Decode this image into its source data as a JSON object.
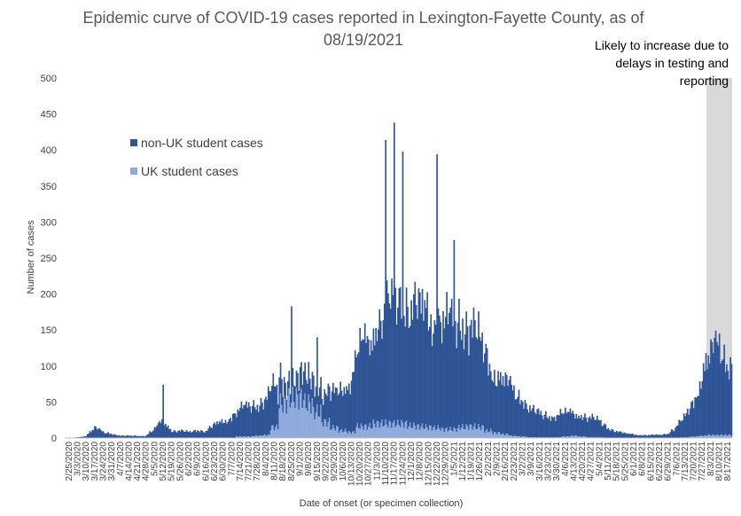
{
  "chart_data": {
    "type": "bar",
    "stacked": true,
    "title_line1": "Epidemic curve of COVID-19 cases reported in Lexington-Fayette County, as of",
    "title_line2": "08/19/2021",
    "xlabel": "Date of onset (or specimen collection)",
    "ylabel": "Number of cases",
    "ylim": [
      0,
      500
    ],
    "yticks": [
      0,
      50,
      100,
      150,
      200,
      250,
      300,
      350,
      400,
      450,
      500
    ],
    "grid": false,
    "legend_placement": "upper-left",
    "x_ticks": [
      "2/25/2020",
      "3/3/2020",
      "3/10/2020",
      "3/17/2020",
      "3/24/2020",
      "3/31/2020",
      "4/7/2020",
      "4/14/2020",
      "4/21/2020",
      "4/28/2020",
      "5/5/2020",
      "5/12/2020",
      "5/19/2020",
      "5/26/2020",
      "6/2/2020",
      "6/9/2020",
      "6/16/2020",
      "6/23/2020",
      "6/30/2020",
      "7/7/2020",
      "7/14/2020",
      "7/21/2020",
      "7/28/2020",
      "8/4/2020",
      "8/11/2020",
      "8/18/2020",
      "8/25/2020",
      "9/1/2020",
      "9/8/2020",
      "9/15/2020",
      "9/22/2020",
      "9/29/2020",
      "10/6/2020",
      "10/13/2020",
      "10/20/2020",
      "10/27/2020",
      "11/3/2020",
      "11/10/2020",
      "11/17/2020",
      "11/24/2020",
      "12/1/2020",
      "12/8/2020",
      "12/15/2020",
      "12/22/2020",
      "12/29/2020",
      "1/5/2021",
      "1/12/2021",
      "1/19/2021",
      "1/26/2021",
      "2/2/2021",
      "2/9/2021",
      "2/16/2021",
      "2/23/2021",
      "3/2/2021",
      "3/9/2021",
      "3/16/2021",
      "3/23/2021",
      "3/30/2021",
      "4/6/2021",
      "4/13/2021",
      "4/20/2021",
      "4/27/2021",
      "5/4/2021",
      "5/11/2021",
      "5/18/2021",
      "5/25/2021",
      "6/1/2021",
      "6/8/2021",
      "6/15/2021",
      "6/22/2021",
      "6/29/2021",
      "7/6/2021",
      "7/13/2021",
      "7/20/2021",
      "7/27/2021",
      "8/3/2021",
      "8/10/2021",
      "8/17/2021"
    ],
    "weekly_series": [
      {
        "name": "non-UK student cases",
        "color": "#2f5597",
        "values": [
          0,
          1,
          3,
          14,
          8,
          6,
          3,
          3,
          3,
          3,
          12,
          25,
          10,
          10,
          8,
          11,
          9,
          18,
          23,
          31,
          38,
          41,
          43,
          51,
          58,
          28,
          22,
          30,
          38,
          38,
          38,
          50,
          60,
          73,
          110,
          115,
          142,
          162,
          165,
          178,
          160,
          160,
          158,
          156,
          148,
          148,
          146,
          138,
          120,
          100,
          78,
          72,
          60,
          53,
          38,
          32,
          30,
          30,
          32,
          30,
          30,
          27,
          22,
          14,
          9,
          6,
          5,
          4,
          4,
          4,
          6,
          16,
          28,
          50,
          88,
          110,
          122,
          100
        ]
      },
      {
        "name": "UK student cases",
        "color": "#8faadc",
        "values": [
          0,
          0,
          0,
          0,
          0,
          0,
          0,
          0,
          0,
          0,
          0,
          0,
          0,
          0,
          0,
          0,
          0,
          0,
          0,
          0,
          2,
          2,
          3,
          4,
          15,
          48,
          55,
          56,
          48,
          36,
          22,
          14,
          10,
          8,
          16,
          16,
          20,
          20,
          20,
          20,
          17,
          16,
          15,
          14,
          12,
          12,
          15,
          16,
          15,
          10,
          7,
          5,
          3,
          2,
          1,
          1,
          1,
          1,
          2,
          3,
          2,
          1,
          1,
          0,
          0,
          0,
          0,
          0,
          0,
          0,
          0,
          0,
          1,
          2,
          3,
          4,
          4,
          4
        ]
      }
    ],
    "spikes": [
      {
        "week_index": 11,
        "total": 74
      },
      {
        "week_index": 26,
        "total": 183
      },
      {
        "week_index": 29,
        "total": 140
      },
      {
        "week_index": 37,
        "total": 414
      },
      {
        "week_index": 38,
        "total": 438
      },
      {
        "week_index": 39,
        "total": 398
      },
      {
        "week_index": 43,
        "total": 394
      },
      {
        "week_index": 45,
        "total": 275
      }
    ],
    "annotation": {
      "lines": [
        "Likely to increase due to",
        "delays in testing and",
        "reporting"
      ],
      "shaded_from": "8/3/2021",
      "shade_color": "#d9d9d9"
    }
  }
}
